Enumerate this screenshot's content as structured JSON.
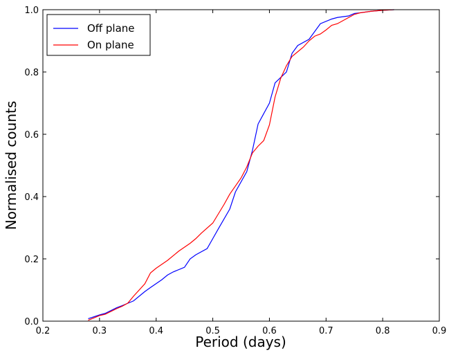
{
  "chart_data": {
    "type": "line",
    "title": "",
    "xlabel": "Period (days)",
    "ylabel": "Normalised counts",
    "xlim": [
      0.2,
      0.9
    ],
    "ylim": [
      0.0,
      1.0
    ],
    "x_ticks": [
      "0.2",
      "0.3",
      "0.4",
      "0.5",
      "0.6",
      "0.7",
      "0.8",
      "0.9"
    ],
    "y_ticks": [
      "0.0",
      "0.2",
      "0.4",
      "0.6",
      "0.8",
      "1.0"
    ],
    "grid": false,
    "legend_position": "top-left",
    "series": [
      {
        "name": "Off plane",
        "color": "#0000ff",
        "x": [
          0.28,
          0.3,
          0.31,
          0.33,
          0.34,
          0.36,
          0.38,
          0.39,
          0.41,
          0.42,
          0.43,
          0.45,
          0.46,
          0.47,
          0.49,
          0.5,
          0.51,
          0.53,
          0.54,
          0.56,
          0.57,
          0.58,
          0.6,
          0.61,
          0.63,
          0.64,
          0.65,
          0.67,
          0.68,
          0.69,
          0.71,
          0.72,
          0.74,
          0.75,
          0.76,
          0.78,
          0.8,
          0.82
        ],
        "y": [
          0.008,
          0.02,
          0.025,
          0.043,
          0.05,
          0.065,
          0.095,
          0.108,
          0.133,
          0.148,
          0.158,
          0.173,
          0.2,
          0.213,
          0.233,
          0.265,
          0.297,
          0.36,
          0.415,
          0.48,
          0.548,
          0.633,
          0.7,
          0.765,
          0.8,
          0.86,
          0.885,
          0.905,
          0.93,
          0.955,
          0.97,
          0.975,
          0.98,
          0.988,
          0.99,
          0.995,
          0.998,
          1.0
        ]
      },
      {
        "name": "On plane",
        "color": "#ff0000",
        "x": [
          0.28,
          0.3,
          0.31,
          0.33,
          0.34,
          0.35,
          0.36,
          0.38,
          0.39,
          0.4,
          0.42,
          0.44,
          0.46,
          0.47,
          0.48,
          0.5,
          0.51,
          0.52,
          0.53,
          0.55,
          0.56,
          0.57,
          0.58,
          0.59,
          0.6,
          0.61,
          0.62,
          0.63,
          0.64,
          0.65,
          0.66,
          0.67,
          0.68,
          0.69,
          0.7,
          0.71,
          0.72,
          0.73,
          0.74,
          0.75,
          0.76,
          0.78,
          0.8,
          0.82
        ],
        "y": [
          0.003,
          0.018,
          0.022,
          0.04,
          0.048,
          0.058,
          0.08,
          0.12,
          0.155,
          0.17,
          0.195,
          0.225,
          0.25,
          0.265,
          0.283,
          0.315,
          0.345,
          0.375,
          0.408,
          0.46,
          0.495,
          0.54,
          0.562,
          0.58,
          0.63,
          0.72,
          0.78,
          0.82,
          0.85,
          0.865,
          0.88,
          0.9,
          0.915,
          0.922,
          0.935,
          0.95,
          0.955,
          0.965,
          0.975,
          0.985,
          0.99,
          0.995,
          0.998,
          1.0
        ]
      }
    ]
  }
}
